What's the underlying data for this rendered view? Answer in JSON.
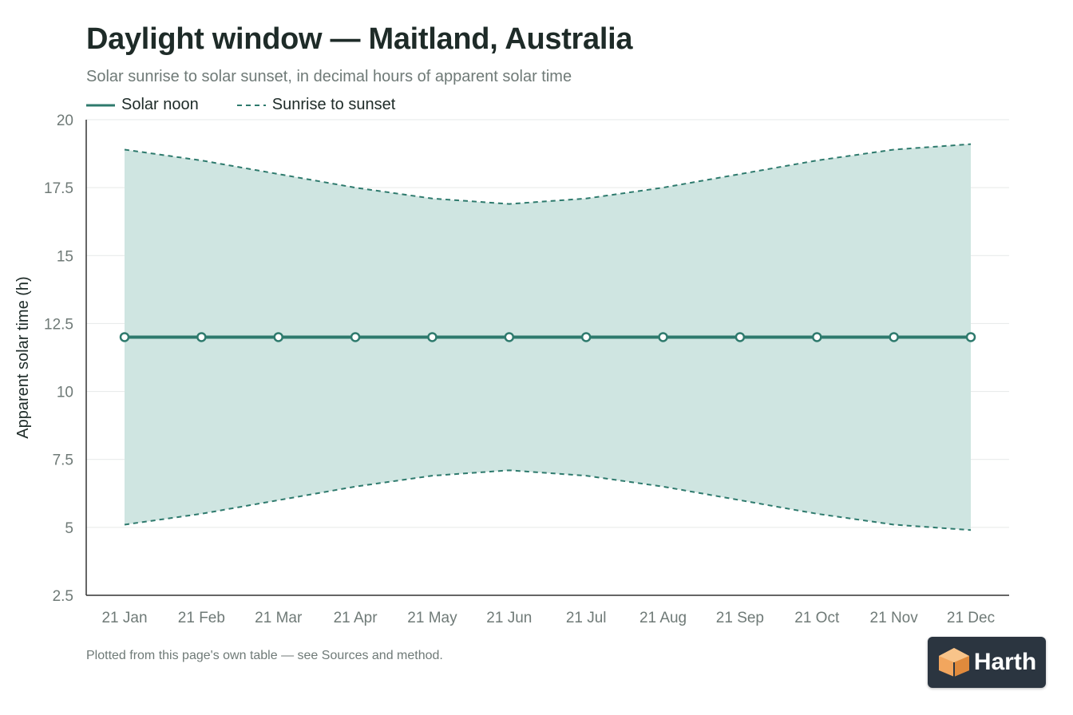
{
  "title": "Daylight window — Maitland, Australia",
  "subtitle": "Solar sunrise to solar sunset, in decimal hours of apparent solar time",
  "footnote": "Plotted from this page's own table — see Sources and method.",
  "logo": {
    "text": "Harth"
  },
  "colors": {
    "accent": "#2e7a6d",
    "band_fill": "#cfe5e1",
    "axis": "#333333",
    "grid": "#e6e9e8",
    "text": "#1e2b28",
    "muted": "#6f7a77"
  },
  "chart_data": {
    "type": "line",
    "title": "Daylight window — Maitland, Australia",
    "subtitle": "Solar sunrise to solar sunset, in decimal hours of apparent solar time",
    "ylabel": "Apparent solar time (h)",
    "xlabel": "",
    "categories": [
      "21 Jan",
      "21 Feb",
      "21 Mar",
      "21 Apr",
      "21 May",
      "21 Jun",
      "21 Jul",
      "21 Aug",
      "21 Sep",
      "21 Oct",
      "21 Nov",
      "21 Dec"
    ],
    "ylim": [
      2.5,
      20
    ],
    "yticks": [
      2.5,
      5,
      7.5,
      10,
      12.5,
      15,
      17.5,
      20
    ],
    "ytick_labels": [
      "2.5",
      "5",
      "7.5",
      "10",
      "12.5",
      "15",
      "17.5",
      "20"
    ],
    "grid": true,
    "legend_position": "top-left",
    "series": [
      {
        "name": "Solar noon",
        "style": "solid",
        "markers": true,
        "values": [
          12,
          12,
          12,
          12,
          12,
          12,
          12,
          12,
          12,
          12,
          12,
          12
        ]
      },
      {
        "name": "Sunrise to sunset",
        "style": "dashed",
        "fill_between": true,
        "sunrise": [
          5.1,
          5.5,
          6.0,
          6.5,
          6.9,
          7.1,
          6.9,
          6.5,
          6.0,
          5.5,
          5.1,
          4.9
        ],
        "sunset": [
          18.9,
          18.5,
          18.0,
          17.5,
          17.1,
          16.9,
          17.1,
          17.5,
          18.0,
          18.5,
          18.9,
          19.1
        ]
      }
    ]
  }
}
